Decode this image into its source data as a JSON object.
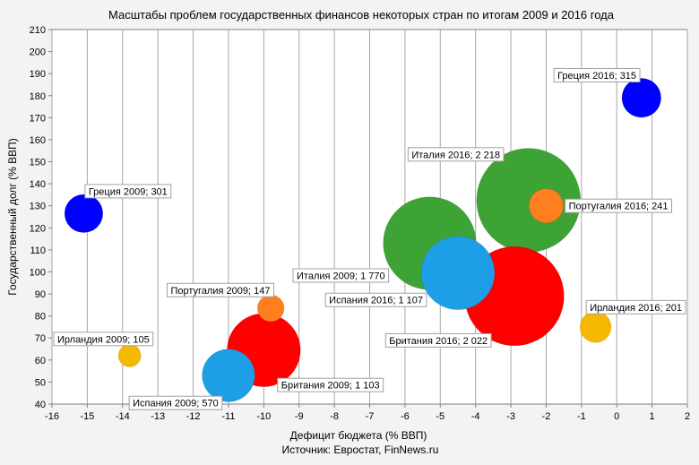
{
  "chart_data": {
    "type": "bubble",
    "title": "Масштабы проблем государственных финансов некоторых стран по итогам 2009 и 2016 года",
    "xlabel": "Дефицит бюджета (% ВВП)",
    "ylabel": "Государственный долг (% ВВП)",
    "source": "Источник: Евростат, FinNews.ru",
    "xlim": [
      -16,
      2
    ],
    "ylim": [
      40,
      210
    ],
    "xticks": [
      -16,
      -15,
      -14,
      -13,
      -12,
      -11,
      -10,
      -9,
      -8,
      -7,
      -6,
      -5,
      -4,
      -3,
      -2,
      -1,
      0,
      1,
      2
    ],
    "yticks": [
      40,
      50,
      60,
      70,
      80,
      90,
      100,
      110,
      120,
      130,
      140,
      150,
      160,
      170,
      180,
      190,
      200,
      210
    ],
    "grid": "vertical",
    "points": [
      {
        "name": "Италия 2016",
        "label": "Италия 2016; 2 218",
        "x": -2.5,
        "y": 132.5,
        "size": 2218,
        "color": "#3ea335"
      },
      {
        "name": "Британия 2016",
        "label": "Британия 2016; 2 022",
        "x": -2.9,
        "y": 89,
        "size": 2022,
        "color": "#ff0000"
      },
      {
        "name": "Италия 2009",
        "label": "Италия 2009; 1 770",
        "x": -5.3,
        "y": 113,
        "size": 1770,
        "color": "#3ea335"
      },
      {
        "name": "Испания 2016",
        "label": "Испания 2016; 1 107",
        "x": -4.5,
        "y": 99.5,
        "size": 1107,
        "color": "#1e9ee6"
      },
      {
        "name": "Британия 2009",
        "label": "Британия 2009; 1 103",
        "x": -10.0,
        "y": 64.5,
        "size": 1103,
        "color": "#ff0000"
      },
      {
        "name": "Испания 2009",
        "label": "Испания 2009; 570",
        "x": -11.0,
        "y": 53,
        "size": 570,
        "color": "#1e9ee6"
      },
      {
        "name": "Греция 2016",
        "label": "Греция 2016; 315",
        "x": 0.7,
        "y": 179,
        "size": 315,
        "color": "#0000ff"
      },
      {
        "name": "Греция 2009",
        "label": "Греция 2009; 301",
        "x": -15.1,
        "y": 126.5,
        "size": 301,
        "color": "#0000ff"
      },
      {
        "name": "Португалия 2016",
        "label": "Португалия 2016; 241",
        "x": -2.0,
        "y": 130,
        "size": 241,
        "color": "#ff7f1e"
      },
      {
        "name": "Ирландия 2016",
        "label": "Ирландия 2016; 201",
        "x": -0.6,
        "y": 75,
        "size": 201,
        "color": "#f5b800"
      },
      {
        "name": "Португалия 2009",
        "label": "Португалия 2009; 147",
        "x": -9.8,
        "y": 83.5,
        "size": 147,
        "color": "#ff7f1e"
      },
      {
        "name": "Ирландия 2009",
        "label": "Ирландия 2009; 105",
        "x": -13.8,
        "y": 62,
        "size": 105,
        "color": "#f5b800"
      }
    ]
  }
}
